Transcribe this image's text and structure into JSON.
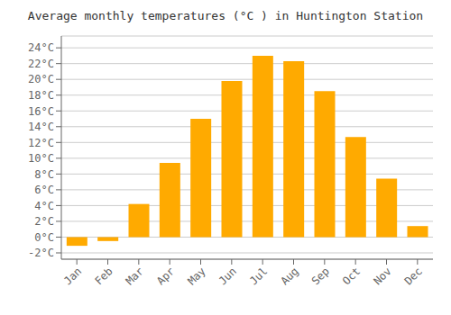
{
  "chart_data": {
    "type": "bar",
    "title": "Average monthly temperatures (°C ) in Huntington Station",
    "categories": [
      "Jan",
      "Feb",
      "Mar",
      "Apr",
      "May",
      "Jun",
      "Jul",
      "Aug",
      "Sep",
      "Oct",
      "Nov",
      "Dec"
    ],
    "values": [
      -1.1,
      -0.5,
      4.2,
      9.4,
      15.0,
      19.8,
      23.0,
      22.3,
      18.5,
      12.7,
      7.4,
      1.4
    ],
    "color": "#FFAA00",
    "ylim": [
      -2.8,
      25.5
    ],
    "yticks": [
      {
        "value": -2,
        "label": "-2°C"
      },
      {
        "value": 0,
        "label": "0°C"
      },
      {
        "value": 2,
        "label": "2°C"
      },
      {
        "value": 4,
        "label": "4°C"
      },
      {
        "value": 6,
        "label": "6°C"
      },
      {
        "value": 8,
        "label": "8°C"
      },
      {
        "value": 10,
        "label": "10°C"
      },
      {
        "value": 12,
        "label": "12°C"
      },
      {
        "value": 14,
        "label": "14°C"
      },
      {
        "value": 16,
        "label": "16°C"
      },
      {
        "value": 18,
        "label": "18°C"
      },
      {
        "value": 20,
        "label": "20°C"
      },
      {
        "value": 22,
        "label": "22°C"
      },
      {
        "value": 24,
        "label": "24°C"
      }
    ],
    "grid": true
  }
}
